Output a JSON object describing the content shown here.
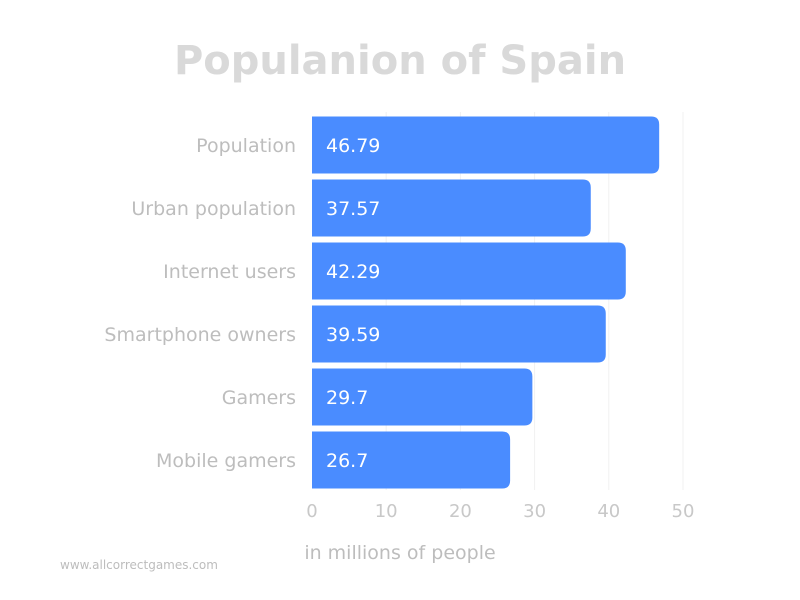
{
  "chart_data": {
    "type": "bar",
    "orientation": "horizontal",
    "title": "Populanion of Spain",
    "categories": [
      "Population",
      "Urban population",
      "Internet users",
      "Smartphone owners",
      "Gamers",
      "Mobile gamers"
    ],
    "values": [
      46.79,
      37.57,
      42.29,
      39.59,
      29.7,
      26.7
    ],
    "value_labels": [
      "46.79",
      "37.57",
      "42.29",
      "39.59",
      "29.7",
      "26.7"
    ],
    "xlabel": "in millions of people",
    "xlim": [
      0,
      50
    ],
    "xticks": [
      0,
      10,
      20,
      30,
      40,
      50
    ],
    "bar_color": "#4a8cff",
    "grid": true
  },
  "watermark": "www.allcorrectgames.com"
}
